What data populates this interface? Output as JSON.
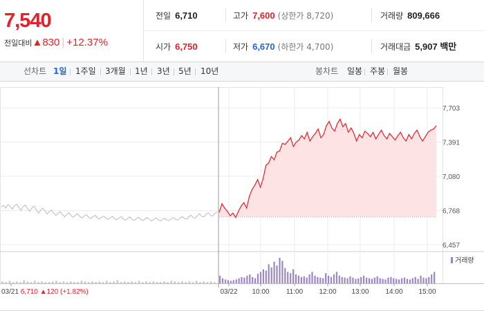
{
  "summary": {
    "price": "7,540",
    "change_label": "전일대비",
    "change_arrow": "▲",
    "change_value": "830",
    "change_rate": "+12.37%",
    "prev_close_label": "전일",
    "prev_close": "6,710",
    "open_label": "시가",
    "open": "6,750",
    "high_label": "고가",
    "high": "7,600",
    "upper_limit": "(상한가 8,720)",
    "low_label": "저가",
    "low": "6,670",
    "lower_limit": "(하한가 4,700)",
    "volume_label": "거래량",
    "volume": "809,666",
    "amount_label": "거래대금",
    "amount": "5,907 백만",
    "colors": {
      "up": "#e5202b",
      "down": "#1f66d6"
    }
  },
  "tabs": {
    "line_label": "선차트",
    "line_items": [
      "1일",
      "1주일",
      "3개월",
      "1년",
      "3년",
      "5년",
      "10년"
    ],
    "line_active": "1일",
    "candle_label": "봉차트",
    "candle_items": [
      "일봉",
      "주봉",
      "월봉"
    ]
  },
  "chart_data": {
    "type": "line",
    "y_ticks": [
      "7,703",
      "7,391",
      "7,080",
      "6,768",
      "6,457"
    ],
    "y_tick_values": [
      7703,
      7391,
      7080,
      6768,
      6457
    ],
    "ylim": [
      6457,
      7703
    ],
    "x_ticks": [
      "03/21",
      "03/22",
      "10:00",
      "11:00",
      "12:00",
      "13:00",
      "14:00",
      "15:00"
    ],
    "prev_day_info": {
      "date": "03/21",
      "close": "6,710",
      "arrow": "▲",
      "change": "120",
      "rate": "(+1.82%)"
    },
    "reference_price": 6710,
    "series": [
      {
        "period": "previous day",
        "color": "#bbbbbb",
        "values": [
          6800,
          6815,
          6790,
          6822,
          6808,
          6780,
          6812,
          6825,
          6796,
          6770,
          6804,
          6818,
          6786,
          6760,
          6792,
          6808,
          6776,
          6742,
          6770,
          6790,
          6764,
          6736,
          6758,
          6772,
          6746,
          6722,
          6744,
          6758,
          6732,
          6712,
          6730,
          6748,
          6720,
          6706,
          6726,
          6738,
          6714,
          6700,
          6718,
          6730,
          6708,
          6694,
          6712,
          6724,
          6702,
          6690,
          6706,
          6718,
          6696,
          6686,
          6702,
          6714,
          6692,
          6682,
          6700,
          6712,
          6690,
          6680,
          6698,
          6710,
          6688,
          6678,
          6696,
          6706,
          6686,
          6676,
          6692,
          6704,
          6684,
          6674,
          6690,
          6700,
          6682,
          6672,
          6688,
          6698,
          6680,
          6676,
          6694,
          6704,
          6686,
          6682,
          6700,
          6712,
          6694,
          6690,
          6710,
          6726,
          6704,
          6700,
          6722,
          6738,
          6714,
          6712,
          6734,
          6746,
          6722,
          6718,
          6742,
          6754
        ]
      },
      {
        "period": "today",
        "color": "#e5202b",
        "values": [
          6750,
          6830,
          6790,
          6760,
          6720,
          6745,
          6705,
          6760,
          6810,
          6840,
          6790,
          6900,
          6960,
          7000,
          7050,
          6980,
          7060,
          7180,
          7200,
          7260,
          7230,
          7300,
          7310,
          7380,
          7370,
          7400,
          7430,
          7350,
          7390,
          7410,
          7450,
          7420,
          7480,
          7400,
          7440,
          7470,
          7510,
          7430,
          7460,
          7540,
          7580,
          7520,
          7490,
          7560,
          7600,
          7530,
          7560,
          7480,
          7520,
          7470,
          7400,
          7460,
          7430,
          7490,
          7470,
          7440,
          7480,
          7420,
          7460,
          7500,
          7450,
          7420,
          7470,
          7440,
          7410,
          7450,
          7480,
          7430,
          7400,
          7460,
          7420,
          7470,
          7500,
          7440,
          7400,
          7440,
          7480,
          7500,
          7510,
          7540
        ]
      }
    ],
    "volume": {
      "legend": "거래량",
      "color": "#9b86c6",
      "prev_day_color": "#cccccc",
      "prev_day_values": [
        3,
        2,
        4,
        2,
        3,
        2,
        5,
        3,
        2,
        4,
        2,
        3,
        2,
        2,
        3,
        4,
        2,
        3,
        2,
        3,
        2,
        2,
        4,
        3,
        2,
        3,
        2,
        3,
        2,
        4,
        2,
        3,
        5,
        2,
        3,
        2,
        3,
        2,
        4,
        2,
        3,
        2,
        3,
        2,
        2,
        3,
        2,
        4,
        3,
        2,
        3,
        2,
        3,
        2,
        4,
        2,
        3,
        2,
        3,
        2
      ],
      "values": [
        12,
        8,
        6,
        5,
        4,
        5,
        6,
        8,
        10,
        9,
        12,
        14,
        10,
        8,
        15,
        18,
        22,
        20,
        30,
        25,
        34,
        28,
        40,
        35,
        24,
        18,
        16,
        22,
        14,
        12,
        10,
        11,
        9,
        14,
        18,
        12,
        10,
        9,
        8,
        16,
        12,
        10,
        14,
        18,
        12,
        10,
        9,
        8,
        11,
        9,
        7,
        8,
        10,
        12,
        9,
        8,
        7,
        9,
        11,
        8,
        7,
        6,
        9,
        10,
        8,
        7,
        6,
        8,
        9,
        7,
        6,
        8,
        10,
        7,
        12,
        9,
        8,
        10,
        14,
        18
      ]
    }
  }
}
